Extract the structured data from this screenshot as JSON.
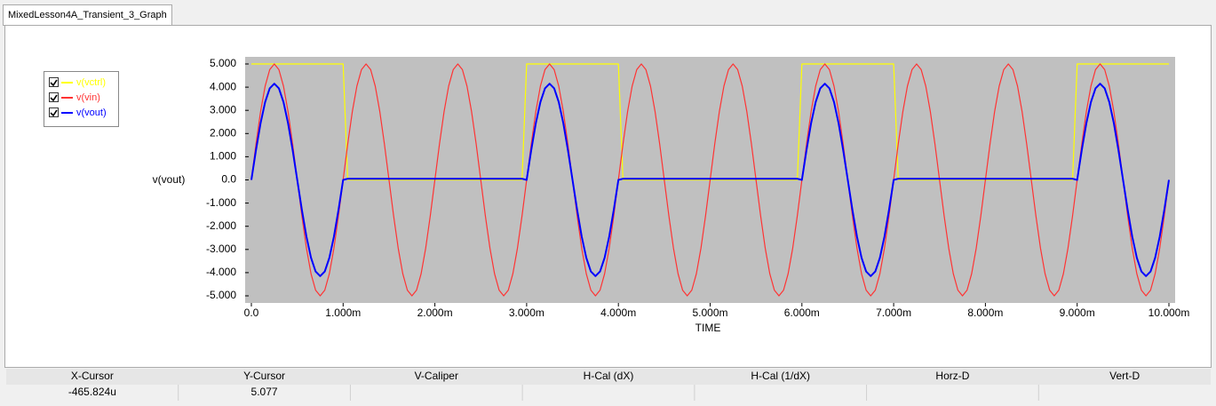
{
  "tab": {
    "title": "MixedLesson4A_Transient_3_Graph"
  },
  "chart_data": {
    "type": "line",
    "ylabel": "v(vout)",
    "xlabel": "TIME",
    "x": [
      0,
      5e-05,
      0.0001,
      0.00015,
      0.0002,
      0.00025,
      0.0003,
      0.00035,
      0.0004,
      0.00045,
      0.0005,
      0.00055,
      0.0006,
      0.00065,
      0.0007,
      0.00075,
      0.0008,
      0.00085,
      0.0009,
      0.00095,
      0.001,
      0.00105,
      0.0011,
      0.00115,
      0.0012,
      0.00125,
      0.0013,
      0.00135,
      0.0014,
      0.00145,
      0.0015,
      0.00155,
      0.0016,
      0.00165,
      0.0017,
      0.00175,
      0.0018,
      0.00185,
      0.0019,
      0.00195,
      0.002,
      0.00205,
      0.0021,
      0.00215,
      0.0022,
      0.00225,
      0.0023,
      0.00235,
      0.0024,
      0.00245,
      0.0025,
      0.00255,
      0.0026,
      0.00265,
      0.0027,
      0.00275,
      0.0028,
      0.00285,
      0.0029,
      0.00295,
      0.003,
      0.00305,
      0.0031,
      0.00315,
      0.0032,
      0.00325,
      0.0033,
      0.00335,
      0.0034,
      0.00345,
      0.0035,
      0.00355,
      0.0036,
      0.00365,
      0.0037,
      0.00375,
      0.0038,
      0.00385,
      0.0039,
      0.00395,
      0.004,
      0.00405,
      0.0041,
      0.00415,
      0.0042,
      0.00425,
      0.0043,
      0.00435,
      0.0044,
      0.00445,
      0.0045,
      0.00455,
      0.0046,
      0.00465,
      0.0047,
      0.00475,
      0.0048,
      0.00485,
      0.0049,
      0.00495,
      0.005,
      0.00505,
      0.0051,
      0.00515,
      0.0052,
      0.00525,
      0.0053,
      0.00535,
      0.0054,
      0.00545,
      0.0055,
      0.00555,
      0.0056,
      0.00565,
      0.0057,
      0.00575,
      0.0058,
      0.00585,
      0.0059,
      0.00595,
      0.006,
      0.00605,
      0.0061,
      0.00615,
      0.0062,
      0.00625,
      0.0063,
      0.00635,
      0.0064,
      0.00645,
      0.0065,
      0.00655,
      0.0066,
      0.00665,
      0.0067,
      0.00675,
      0.0068,
      0.00685,
      0.0069,
      0.00695,
      0.007,
      0.00705,
      0.0071,
      0.00715,
      0.0072,
      0.00725,
      0.0073,
      0.00735,
      0.0074,
      0.00745,
      0.0075,
      0.00755,
      0.0076,
      0.00765,
      0.0077,
      0.00775,
      0.0078,
      0.00785,
      0.0079,
      0.00795,
      0.008,
      0.00805,
      0.0081,
      0.00815,
      0.0082,
      0.00825,
      0.0083,
      0.00835,
      0.0084,
      0.00845,
      0.0085,
      0.00855,
      0.0086,
      0.00865,
      0.0087,
      0.00875,
      0.0088,
      0.00885,
      0.0089,
      0.00895,
      0.009,
      0.00905,
      0.0091,
      0.00915,
      0.0092,
      0.00925,
      0.0093,
      0.00935,
      0.0094,
      0.00945,
      0.0095,
      0.00955,
      0.0096,
      0.00965,
      0.0097,
      0.00975,
      0.0098,
      0.00985,
      0.0099,
      0.00995,
      0.01
    ],
    "series": [
      {
        "name": "v(vctrl)",
        "color": "#ffff00",
        "values": [
          5,
          5,
          5,
          5,
          5,
          5,
          5,
          5,
          5,
          5,
          5,
          5,
          5,
          5,
          5,
          5,
          5,
          5,
          5,
          5,
          5,
          0,
          0,
          0,
          0,
          0,
          0,
          0,
          0,
          0,
          0,
          0,
          0,
          0,
          0,
          0,
          0,
          0,
          0,
          0,
          0,
          0,
          0,
          0,
          0,
          0,
          0,
          0,
          0,
          0,
          0,
          0,
          0,
          0,
          0,
          0,
          0,
          0,
          0,
          0,
          5,
          5,
          5,
          5,
          5,
          5,
          5,
          5,
          5,
          5,
          5,
          5,
          5,
          5,
          5,
          5,
          5,
          5,
          5,
          5,
          5,
          0,
          0,
          0,
          0,
          0,
          0,
          0,
          0,
          0,
          0,
          0,
          0,
          0,
          0,
          0,
          0,
          0,
          0,
          0,
          0,
          0,
          0,
          0,
          0,
          0,
          0,
          0,
          0,
          0,
          0,
          0,
          0,
          0,
          0,
          0,
          0,
          0,
          0,
          0,
          5,
          5,
          5,
          5,
          5,
          5,
          5,
          5,
          5,
          5,
          5,
          5,
          5,
          5,
          5,
          5,
          5,
          5,
          5,
          5,
          5,
          0,
          0,
          0,
          0,
          0,
          0,
          0,
          0,
          0,
          0,
          0,
          0,
          0,
          0,
          0,
          0,
          0,
          0,
          0,
          0,
          0,
          0,
          0,
          0,
          0,
          0,
          0,
          0,
          0,
          0,
          0,
          0,
          0,
          0,
          0,
          0,
          0,
          0,
          0,
          5,
          5,
          5,
          5,
          5,
          5,
          5,
          5,
          5,
          5,
          5,
          5,
          5,
          5,
          5,
          5,
          5,
          5,
          5,
          5,
          5
        ]
      },
      {
        "name": "v(vin)",
        "color": "#ff3333",
        "values": [
          0,
          1.545,
          2.939,
          4.045,
          4.755,
          5,
          4.755,
          4.045,
          2.939,
          1.545,
          0,
          -1.545,
          -2.939,
          -4.045,
          -4.755,
          -5,
          -4.755,
          -4.045,
          -2.939,
          -1.545,
          0,
          1.545,
          2.939,
          4.045,
          4.755,
          5,
          4.755,
          4.045,
          2.939,
          1.545,
          0,
          -1.545,
          -2.939,
          -4.045,
          -4.755,
          -5,
          -4.755,
          -4.045,
          -2.939,
          -1.545,
          0,
          1.545,
          2.939,
          4.045,
          4.755,
          5,
          4.755,
          4.045,
          2.939,
          1.545,
          0,
          -1.545,
          -2.939,
          -4.045,
          -4.755,
          -5,
          -4.755,
          -4.045,
          -2.939,
          -1.545,
          0,
          1.545,
          2.939,
          4.045,
          4.755,
          5,
          4.755,
          4.045,
          2.939,
          1.545,
          0,
          -1.545,
          -2.939,
          -4.045,
          -4.755,
          -5,
          -4.755,
          -4.045,
          -2.939,
          -1.545,
          0,
          1.545,
          2.939,
          4.045,
          4.755,
          5,
          4.755,
          4.045,
          2.939,
          1.545,
          0,
          -1.545,
          -2.939,
          -4.045,
          -4.755,
          -5,
          -4.755,
          -4.045,
          -2.939,
          -1.545,
          0,
          1.545,
          2.939,
          4.045,
          4.755,
          5,
          4.755,
          4.045,
          2.939,
          1.545,
          0,
          -1.545,
          -2.939,
          -4.045,
          -4.755,
          -5,
          -4.755,
          -4.045,
          -2.939,
          -1.545,
          0,
          1.545,
          2.939,
          4.045,
          4.755,
          5,
          4.755,
          4.045,
          2.939,
          1.545,
          0,
          -1.545,
          -2.939,
          -4.045,
          -4.755,
          -5,
          -4.755,
          -4.045,
          -2.939,
          -1.545,
          0,
          1.545,
          2.939,
          4.045,
          4.755,
          5,
          4.755,
          4.045,
          2.939,
          1.545,
          0,
          -1.545,
          -2.939,
          -4.045,
          -4.755,
          -5,
          -4.755,
          -4.045,
          -2.939,
          -1.545,
          0,
          1.545,
          2.939,
          4.045,
          4.755,
          5,
          4.755,
          4.045,
          2.939,
          1.545,
          0,
          -1.545,
          -2.939,
          -4.045,
          -4.755,
          -5,
          -4.755,
          -4.045,
          -2.939,
          -1.545,
          0,
          1.545,
          2.939,
          4.045,
          4.755,
          5,
          4.755,
          4.045,
          2.939,
          1.545,
          0,
          -1.545,
          -2.939,
          -4.045,
          -4.755,
          -5,
          -4.755,
          -4.045,
          -2.939,
          -1.545,
          0
        ]
      },
      {
        "name": "v(vout)",
        "color": "#0000ff",
        "values": [
          0,
          1.282,
          2.439,
          3.357,
          3.947,
          4.15,
          3.947,
          3.357,
          2.439,
          1.282,
          0,
          -1.282,
          -2.439,
          -3.357,
          -3.947,
          -4.15,
          -3.947,
          -3.357,
          -2.439,
          -1.282,
          0,
          0.05,
          0.05,
          0.05,
          0.05,
          0.05,
          0.05,
          0.05,
          0.05,
          0.05,
          0.05,
          0.05,
          0.05,
          0.05,
          0.05,
          0.05,
          0.05,
          0.05,
          0.05,
          0.05,
          0.05,
          0.05,
          0.05,
          0.05,
          0.05,
          0.05,
          0.05,
          0.05,
          0.05,
          0.05,
          0.05,
          0.05,
          0.05,
          0.05,
          0.05,
          0.05,
          0.05,
          0.05,
          0.05,
          0.05,
          0,
          1.282,
          2.439,
          3.357,
          3.947,
          4.15,
          3.947,
          3.357,
          2.439,
          1.282,
          0,
          -1.282,
          -2.439,
          -3.357,
          -3.947,
          -4.15,
          -3.947,
          -3.357,
          -2.439,
          -1.282,
          0,
          0.05,
          0.05,
          0.05,
          0.05,
          0.05,
          0.05,
          0.05,
          0.05,
          0.05,
          0.05,
          0.05,
          0.05,
          0.05,
          0.05,
          0.05,
          0.05,
          0.05,
          0.05,
          0.05,
          0.05,
          0.05,
          0.05,
          0.05,
          0.05,
          0.05,
          0.05,
          0.05,
          0.05,
          0.05,
          0.05,
          0.05,
          0.05,
          0.05,
          0.05,
          0.05,
          0.05,
          0.05,
          0.05,
          0.05,
          0,
          1.282,
          2.439,
          3.357,
          3.947,
          4.15,
          3.947,
          3.357,
          2.439,
          1.282,
          0,
          -1.282,
          -2.439,
          -3.357,
          -3.947,
          -4.15,
          -3.947,
          -3.357,
          -2.439,
          -1.282,
          0,
          0.05,
          0.05,
          0.05,
          0.05,
          0.05,
          0.05,
          0.05,
          0.05,
          0.05,
          0.05,
          0.05,
          0.05,
          0.05,
          0.05,
          0.05,
          0.05,
          0.05,
          0.05,
          0.05,
          0.05,
          0.05,
          0.05,
          0.05,
          0.05,
          0.05,
          0.05,
          0.05,
          0.05,
          0.05,
          0.05,
          0.05,
          0.05,
          0.05,
          0.05,
          0.05,
          0.05,
          0.05,
          0.05,
          0.05,
          0,
          1.282,
          2.439,
          3.357,
          3.947,
          4.15,
          3.947,
          3.357,
          2.439,
          1.282,
          0,
          -1.282,
          -2.439,
          -3.357,
          -3.947,
          -4.15,
          -3.947,
          -3.357,
          -2.439,
          -1.282,
          0
        ]
      }
    ],
    "xlim": [
      0,
      0.01
    ],
    "xticks": [
      {
        "value": 0,
        "label": "0.0"
      },
      {
        "value": 0.001,
        "label": "1.000m"
      },
      {
        "value": 0.002,
        "label": "2.000m"
      },
      {
        "value": 0.003,
        "label": "3.000m"
      },
      {
        "value": 0.004,
        "label": "4.000m"
      },
      {
        "value": 0.005,
        "label": "5.000m"
      },
      {
        "value": 0.006,
        "label": "6.000m"
      },
      {
        "value": 0.007,
        "label": "7.000m"
      },
      {
        "value": 0.008,
        "label": "8.000m"
      },
      {
        "value": 0.009,
        "label": "9.000m"
      },
      {
        "value": 0.01,
        "label": "10.000m"
      }
    ],
    "ylim": [
      -5,
      5
    ],
    "yticks": [
      {
        "value": 5,
        "label": "5.000"
      },
      {
        "value": 4,
        "label": "4.000"
      },
      {
        "value": 3,
        "label": "3.000"
      },
      {
        "value": 2,
        "label": "2.000"
      },
      {
        "value": 1,
        "label": "1.000"
      },
      {
        "value": 0,
        "label": "0.0"
      },
      {
        "value": -1,
        "label": "-1.000"
      },
      {
        "value": -2,
        "label": "-2.000"
      },
      {
        "value": -3,
        "label": "-3.000"
      },
      {
        "value": -4,
        "label": "-4.000"
      },
      {
        "value": -5,
        "label": "-5.000"
      }
    ],
    "grid": false,
    "legend": "top-left"
  },
  "cursor_table": {
    "headers": [
      "X-Cursor",
      "Y-Cursor",
      "V-Caliper",
      "H-Cal (dX)",
      "H-Cal (1/dX)",
      "Horz-D",
      "Vert-D"
    ],
    "values": [
      "-465.824u",
      "5.077"
    ]
  }
}
